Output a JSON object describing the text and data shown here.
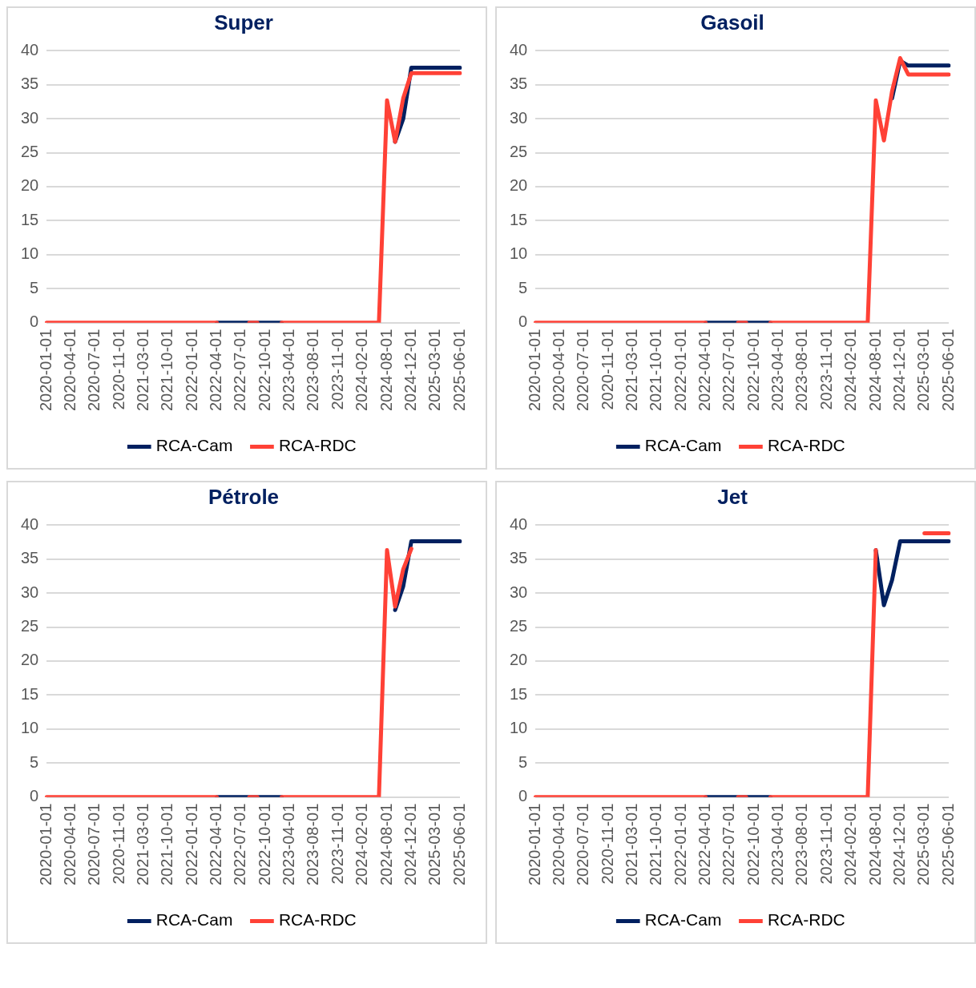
{
  "chart_data": [
    {
      "type": "line",
      "title": "Super",
      "categories": [
        "2020-01-01",
        null,
        null,
        "2020-04-01",
        null,
        null,
        "2020-07-01",
        null,
        null,
        "2020-11-01",
        null,
        null,
        "2021-03-01",
        null,
        null,
        "2021-10-01",
        null,
        null,
        "2022-01-01",
        null,
        null,
        "2022-04-01",
        null,
        null,
        "2022-07-01",
        null,
        null,
        "2022-10-01",
        null,
        null,
        "2023-04-01",
        null,
        null,
        "2023-08-01",
        null,
        null,
        "2023-11-01",
        null,
        null,
        "2024-02-01",
        null,
        null,
        "2024-08-01",
        null,
        null,
        "2024-12-01",
        null,
        null,
        "2025-03-01",
        null,
        null,
        "2025-06-01"
      ],
      "ylim": [
        0,
        40
      ],
      "yticks": [
        0,
        5,
        10,
        15,
        20,
        25,
        30,
        35,
        40
      ],
      "grid": "y",
      "legend": "bottom",
      "marker": "none",
      "series": [
        {
          "name": "RCA-Cam",
          "color": "#002060",
          "values": [
            null,
            null,
            null,
            null,
            null,
            null,
            null,
            null,
            null,
            null,
            null,
            null,
            null,
            null,
            null,
            null,
            null,
            null,
            null,
            null,
            null,
            0,
            0,
            0,
            0,
            0,
            0,
            0,
            0,
            0,
            null,
            null,
            null,
            null,
            null,
            null,
            null,
            null,
            null,
            null,
            null,
            null,
            null,
            26.6,
            30,
            37.5,
            37.5,
            37.5,
            37.5,
            37.5,
            37.5,
            37.5
          ]
        },
        {
          "name": "RCA-RDC",
          "color": "#ff4136",
          "values": [
            0,
            0,
            0,
            0,
            0,
            0,
            0,
            0,
            0,
            0,
            0,
            0,
            0,
            0,
            0,
            0,
            0,
            0,
            0,
            0,
            0,
            0,
            null,
            null,
            null,
            0,
            0,
            null,
            null,
            0,
            0,
            0,
            0,
            0,
            0,
            0,
            0,
            0,
            0,
            0,
            0,
            0,
            32.7,
            26.6,
            33,
            36.7,
            36.7,
            36.7,
            36.7,
            36.7,
            36.7,
            36.7
          ]
        }
      ]
    },
    {
      "type": "line",
      "title": "Gasoil",
      "categories": [
        "2020-01-01",
        null,
        null,
        "2020-04-01",
        null,
        null,
        "2020-07-01",
        null,
        null,
        "2020-11-01",
        null,
        null,
        "2021-03-01",
        null,
        null,
        "2021-10-01",
        null,
        null,
        "2022-01-01",
        null,
        null,
        "2022-04-01",
        null,
        null,
        "2022-07-01",
        null,
        null,
        "2022-10-01",
        null,
        null,
        "2023-04-01",
        null,
        null,
        "2023-08-01",
        null,
        null,
        "2023-11-01",
        null,
        null,
        "2024-02-01",
        null,
        null,
        "2024-08-01",
        null,
        null,
        "2024-12-01",
        null,
        null,
        "2025-03-01",
        null,
        null,
        "2025-06-01"
      ],
      "ylim": [
        0,
        40
      ],
      "yticks": [
        0,
        5,
        10,
        15,
        20,
        25,
        30,
        35,
        40
      ],
      "grid": "y",
      "legend": "bottom",
      "marker": "none",
      "series": [
        {
          "name": "RCA-Cam",
          "color": "#002060",
          "values": [
            null,
            null,
            null,
            null,
            null,
            null,
            null,
            null,
            null,
            null,
            null,
            null,
            null,
            null,
            null,
            null,
            null,
            null,
            null,
            null,
            null,
            0,
            0,
            0,
            0,
            0,
            0,
            0,
            0,
            0,
            null,
            null,
            null,
            null,
            null,
            null,
            null,
            null,
            null,
            null,
            null,
            null,
            null,
            null,
            33,
            38.5,
            37.8,
            37.8,
            37.8,
            37.8,
            37.8,
            37.8
          ]
        },
        {
          "name": "RCA-RDC",
          "color": "#ff4136",
          "values": [
            0,
            0,
            0,
            0,
            0,
            0,
            0,
            0,
            0,
            0,
            0,
            0,
            0,
            0,
            0,
            0,
            0,
            0,
            0,
            0,
            0,
            0,
            null,
            null,
            null,
            0,
            0,
            null,
            null,
            0,
            0,
            0,
            0,
            0,
            0,
            0,
            0,
            0,
            0,
            0,
            0,
            0,
            32.7,
            26.8,
            34,
            38.9,
            36.5,
            36.5,
            36.5,
            36.5,
            36.5,
            36.5
          ]
        }
      ]
    },
    {
      "type": "line",
      "title": "Pétrole",
      "categories": [
        "2020-01-01",
        null,
        null,
        "2020-04-01",
        null,
        null,
        "2020-07-01",
        null,
        null,
        "2020-11-01",
        null,
        null,
        "2021-03-01",
        null,
        null,
        "2021-10-01",
        null,
        null,
        "2022-01-01",
        null,
        null,
        "2022-04-01",
        null,
        null,
        "2022-07-01",
        null,
        null,
        "2022-10-01",
        null,
        null,
        "2023-04-01",
        null,
        null,
        "2023-08-01",
        null,
        null,
        "2023-11-01",
        null,
        null,
        "2024-02-01",
        null,
        null,
        "2024-08-01",
        null,
        null,
        "2024-12-01",
        null,
        null,
        "2025-03-01",
        null,
        null,
        "2025-06-01"
      ],
      "ylim": [
        0,
        40
      ],
      "yticks": [
        0,
        5,
        10,
        15,
        20,
        25,
        30,
        35,
        40
      ],
      "grid": "y",
      "legend": "bottom",
      "marker": "none",
      "series": [
        {
          "name": "RCA-Cam",
          "color": "#002060",
          "values": [
            null,
            null,
            null,
            null,
            null,
            null,
            null,
            null,
            null,
            null,
            null,
            null,
            null,
            null,
            null,
            null,
            null,
            null,
            null,
            null,
            null,
            0,
            0,
            0,
            0,
            0,
            0,
            0,
            0,
            0,
            null,
            null,
            null,
            null,
            null,
            null,
            null,
            null,
            null,
            null,
            null,
            null,
            null,
            27.5,
            31,
            37.6,
            37.6,
            37.6,
            37.6,
            37.6,
            37.6,
            37.6
          ]
        },
        {
          "name": "RCA-RDC",
          "color": "#ff4136",
          "values": [
            0,
            0,
            0,
            0,
            0,
            0,
            0,
            0,
            0,
            0,
            0,
            0,
            0,
            0,
            0,
            0,
            0,
            0,
            0,
            0,
            0,
            0,
            null,
            null,
            null,
            0,
            0,
            null,
            null,
            0,
            0,
            0,
            0,
            0,
            0,
            0,
            0,
            0,
            0,
            0,
            0,
            0,
            36.3,
            28,
            33.5,
            36.5,
            null,
            null,
            null,
            null,
            null,
            null
          ]
        }
      ]
    },
    {
      "type": "line",
      "title": "Jet",
      "categories": [
        "2020-01-01",
        null,
        null,
        "2020-04-01",
        null,
        null,
        "2020-07-01",
        null,
        null,
        "2020-11-01",
        null,
        null,
        "2021-03-01",
        null,
        null,
        "2021-10-01",
        null,
        null,
        "2022-01-01",
        null,
        null,
        "2022-04-01",
        null,
        null,
        "2022-07-01",
        null,
        null,
        "2022-10-01",
        null,
        null,
        "2023-04-01",
        null,
        null,
        "2023-08-01",
        null,
        null,
        "2023-11-01",
        null,
        null,
        "2024-02-01",
        null,
        null,
        "2024-08-01",
        null,
        null,
        "2024-12-01",
        null,
        null,
        "2025-03-01",
        null,
        null,
        "2025-06-01"
      ],
      "ylim": [
        0,
        40
      ],
      "yticks": [
        0,
        5,
        10,
        15,
        20,
        25,
        30,
        35,
        40
      ],
      "grid": "y",
      "legend": "bottom",
      "marker": "none",
      "series": [
        {
          "name": "RCA-Cam",
          "color": "#002060",
          "values": [
            null,
            null,
            null,
            null,
            null,
            null,
            null,
            null,
            null,
            null,
            null,
            null,
            null,
            null,
            null,
            null,
            null,
            null,
            null,
            null,
            null,
            0,
            0,
            0,
            0,
            0,
            0,
            0,
            0,
            0,
            null,
            null,
            null,
            null,
            null,
            null,
            null,
            null,
            null,
            null,
            null,
            null,
            36.3,
            28.2,
            31.9,
            37.6,
            37.6,
            37.6,
            37.6,
            37.6,
            37.6,
            37.6
          ]
        },
        {
          "name": "RCA-RDC",
          "color": "#ff4136",
          "values": [
            0,
            0,
            0,
            0,
            0,
            0,
            0,
            0,
            0,
            0,
            0,
            0,
            0,
            0,
            0,
            0,
            0,
            0,
            0,
            0,
            0,
            0,
            null,
            null,
            null,
            0,
            0,
            null,
            null,
            0,
            0,
            0,
            0,
            0,
            0,
            0,
            0,
            0,
            0,
            0,
            0,
            0,
            36.3,
            null,
            null,
            null,
            null,
            null,
            38.8,
            38.8,
            38.8,
            38.8
          ]
        }
      ]
    }
  ]
}
